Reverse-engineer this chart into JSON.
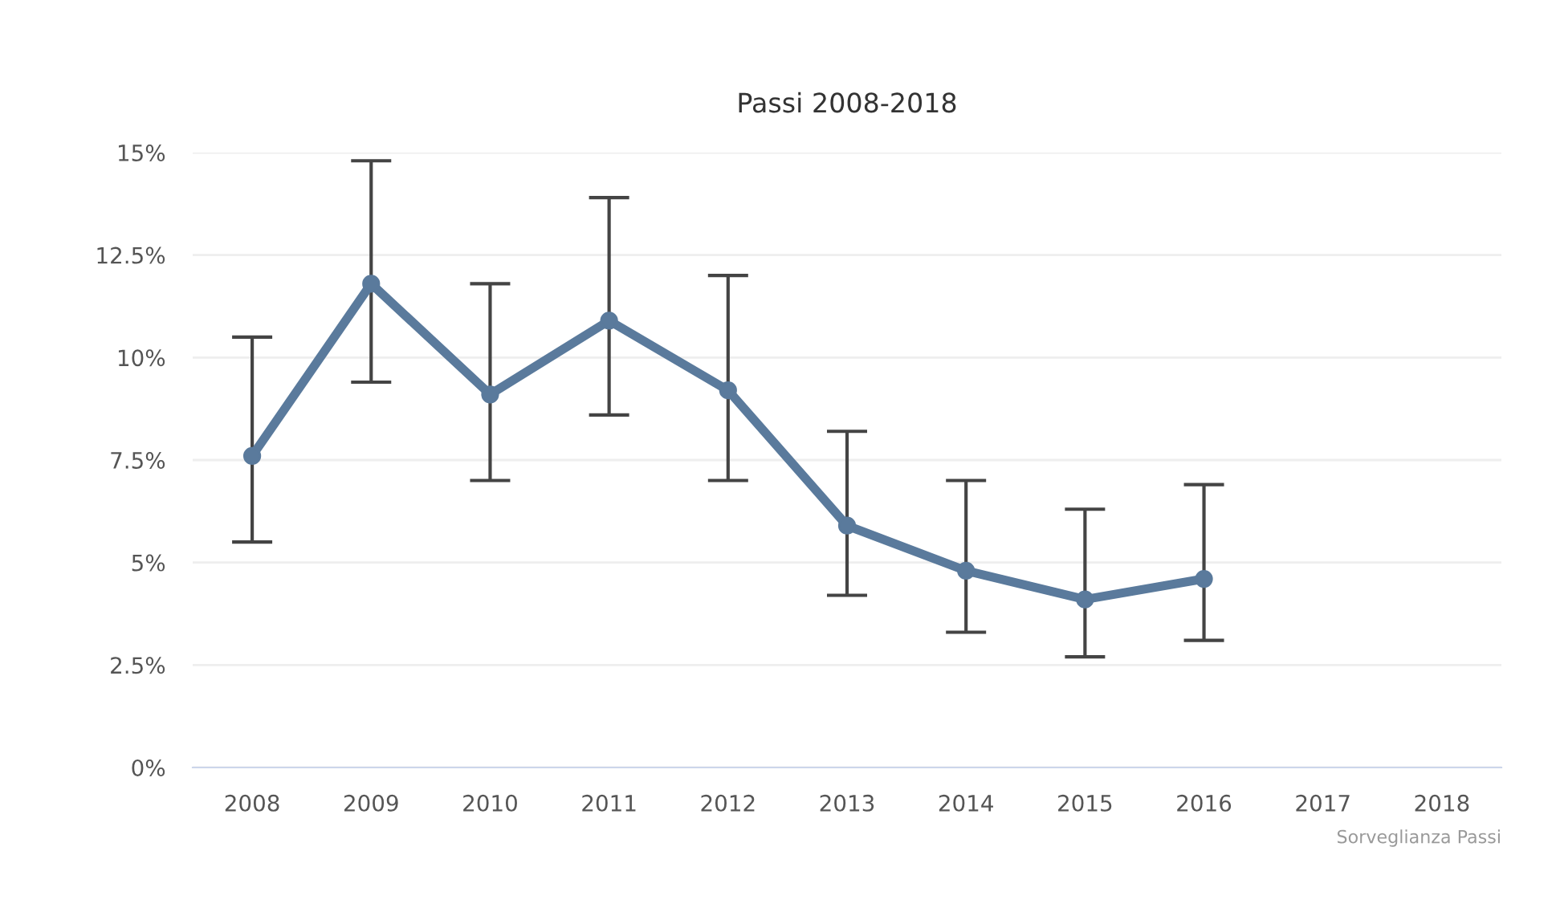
{
  "chart_data": {
    "type": "line",
    "title": "Passi 2008-2018",
    "categories": [
      "2008",
      "2009",
      "2010",
      "2011",
      "2012",
      "2013",
      "2014",
      "2015",
      "2016",
      "2017",
      "2018"
    ],
    "series": [
      {
        "color": "#5a7a9c",
        "values": [
          7.6,
          11.8,
          9.1,
          10.9,
          9.2,
          5.9,
          4.8,
          4.1,
          4.6,
          null,
          null
        ],
        "errors": [
          [
            5.5,
            10.5
          ],
          [
            9.4,
            14.8
          ],
          [
            7.0,
            11.8
          ],
          [
            8.6,
            13.9
          ],
          [
            7.0,
            12.0
          ],
          [
            4.2,
            8.2
          ],
          [
            3.3,
            7.0
          ],
          [
            2.7,
            6.3
          ],
          [
            3.1,
            6.9
          ],
          null,
          null
        ]
      }
    ],
    "ylim": [
      0,
      15
    ],
    "yticks": [
      {
        "value": 0,
        "label": "0%"
      },
      {
        "value": 2.5,
        "label": "2.5%"
      },
      {
        "value": 5,
        "label": "5%"
      },
      {
        "value": 7.5,
        "label": "7.5%"
      },
      {
        "value": 10,
        "label": "10%"
      },
      {
        "value": 12.5,
        "label": "12.5%"
      },
      {
        "value": 15,
        "label": "15%"
      }
    ],
    "grid": "y",
    "marker": "circle",
    "line_style": "solid",
    "annotations": [
      "Sorveglianza Passi"
    ]
  }
}
